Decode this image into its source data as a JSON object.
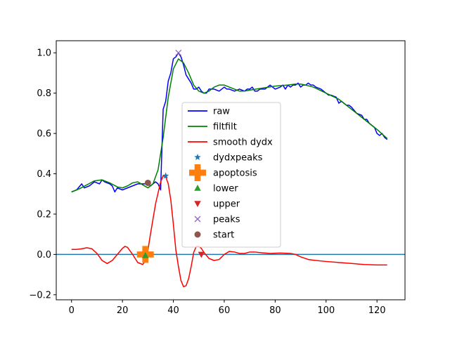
{
  "chart_data": {
    "type": "line",
    "title": "",
    "xlabel": "",
    "ylabel": "",
    "xlim": [
      -6,
      131
    ],
    "ylim": [
      -0.225,
      1.06
    ],
    "x_ticks": [
      0,
      20,
      40,
      60,
      80,
      100,
      120
    ],
    "y_ticks": [
      -0.2,
      0.0,
      0.2,
      0.4,
      0.6,
      0.8,
      1.0
    ],
    "x_tick_labels": [
      "0",
      "20",
      "40",
      "60",
      "80",
      "100",
      "120"
    ],
    "y_tick_labels": [
      "−0.2",
      "0.0",
      "0.2",
      "0.4",
      "0.6",
      "0.8",
      "1.0"
    ],
    "grid": false,
    "legend_position": "center",
    "hline": {
      "y": 0.0,
      "color": "#1f77b4"
    },
    "series": [
      {
        "name": "raw",
        "kind": "line",
        "color": "#0000ff",
        "points": [
          [
            0,
            0.31
          ],
          [
            2,
            0.32
          ],
          [
            4,
            0.35
          ],
          [
            5,
            0.33
          ],
          [
            7,
            0.34
          ],
          [
            9,
            0.36
          ],
          [
            11,
            0.35
          ],
          [
            12,
            0.37
          ],
          [
            13,
            0.36
          ],
          [
            15,
            0.35
          ],
          [
            16,
            0.34
          ],
          [
            17,
            0.31
          ],
          [
            18,
            0.33
          ],
          [
            20,
            0.32
          ],
          [
            22,
            0.33
          ],
          [
            24,
            0.34
          ],
          [
            26,
            0.35
          ],
          [
            28,
            0.35
          ],
          [
            30,
            0.35
          ],
          [
            31,
            0.34
          ],
          [
            32,
            0.35
          ],
          [
            33,
            0.36
          ],
          [
            34,
            0.35
          ],
          [
            35,
            0.32
          ],
          [
            36,
            0.72
          ],
          [
            37,
            0.76
          ],
          [
            38,
            0.86
          ],
          [
            39,
            0.9
          ],
          [
            40,
            0.97
          ],
          [
            41,
            0.98
          ],
          [
            42,
            1.0
          ],
          [
            43,
            0.98
          ],
          [
            44,
            0.94
          ],
          [
            45,
            0.89
          ],
          [
            46,
            0.87
          ],
          [
            47,
            0.85
          ],
          [
            48,
            0.82
          ],
          [
            49,
            0.82
          ],
          [
            50,
            0.83
          ],
          [
            51,
            0.81
          ],
          [
            52,
            0.8
          ],
          [
            53,
            0.8
          ],
          [
            54,
            0.82
          ],
          [
            55,
            0.82
          ],
          [
            56,
            0.82
          ],
          [
            58,
            0.81
          ],
          [
            59,
            0.82
          ],
          [
            60,
            0.83
          ],
          [
            61,
            0.82
          ],
          [
            62,
            0.82
          ],
          [
            64,
            0.81
          ],
          [
            66,
            0.82
          ],
          [
            68,
            0.81
          ],
          [
            69,
            0.82
          ],
          [
            70,
            0.82
          ],
          [
            71,
            0.83
          ],
          [
            72,
            0.81
          ],
          [
            73,
            0.81
          ],
          [
            74,
            0.82
          ],
          [
            76,
            0.82
          ],
          [
            77,
            0.83
          ],
          [
            78,
            0.84
          ],
          [
            79,
            0.83
          ],
          [
            80,
            0.82
          ],
          [
            82,
            0.83
          ],
          [
            83,
            0.84
          ],
          [
            84,
            0.82
          ],
          [
            85,
            0.84
          ],
          [
            86,
            0.83
          ],
          [
            87,
            0.84
          ],
          [
            88,
            0.84
          ],
          [
            89,
            0.85
          ],
          [
            90,
            0.83
          ],
          [
            91,
            0.84
          ],
          [
            92,
            0.84
          ],
          [
            93,
            0.85
          ],
          [
            94,
            0.84
          ],
          [
            95,
            0.84
          ],
          [
            96,
            0.83
          ],
          [
            98,
            0.82
          ],
          [
            99,
            0.81
          ],
          [
            100,
            0.8
          ],
          [
            101,
            0.79
          ],
          [
            102,
            0.79
          ],
          [
            104,
            0.78
          ],
          [
            105,
            0.75
          ],
          [
            106,
            0.76
          ],
          [
            108,
            0.74
          ],
          [
            109,
            0.74
          ],
          [
            110,
            0.73
          ],
          [
            112,
            0.7
          ],
          [
            114,
            0.69
          ],
          [
            115,
            0.67
          ],
          [
            116,
            0.67
          ],
          [
            117,
            0.65
          ],
          [
            118,
            0.64
          ],
          [
            119,
            0.63
          ],
          [
            120,
            0.6
          ],
          [
            121,
            0.59
          ],
          [
            122,
            0.6
          ],
          [
            123,
            0.58
          ],
          [
            124,
            0.57
          ]
        ]
      },
      {
        "name": "filtfilt",
        "kind": "line",
        "color": "#008000",
        "points": [
          [
            0,
            0.31
          ],
          [
            3,
            0.325
          ],
          [
            6,
            0.345
          ],
          [
            9,
            0.365
          ],
          [
            12,
            0.37
          ],
          [
            15,
            0.355
          ],
          [
            18,
            0.335
          ],
          [
            20,
            0.33
          ],
          [
            22,
            0.34
          ],
          [
            24,
            0.355
          ],
          [
            26,
            0.36
          ],
          [
            28,
            0.345
          ],
          [
            30,
            0.33
          ],
          [
            32,
            0.35
          ],
          [
            34,
            0.42
          ],
          [
            36,
            0.58
          ],
          [
            38,
            0.78
          ],
          [
            40,
            0.92
          ],
          [
            42,
            0.97
          ],
          [
            44,
            0.95
          ],
          [
            46,
            0.9
          ],
          [
            48,
            0.84
          ],
          [
            50,
            0.81
          ],
          [
            52,
            0.8
          ],
          [
            54,
            0.81
          ],
          [
            56,
            0.83
          ],
          [
            58,
            0.84
          ],
          [
            60,
            0.84
          ],
          [
            62,
            0.83
          ],
          [
            64,
            0.82
          ],
          [
            66,
            0.81
          ],
          [
            68,
            0.81
          ],
          [
            70,
            0.815
          ],
          [
            75,
            0.825
          ],
          [
            80,
            0.835
          ],
          [
            85,
            0.84
          ],
          [
            88,
            0.845
          ],
          [
            90,
            0.845
          ],
          [
            92,
            0.84
          ],
          [
            95,
            0.83
          ],
          [
            100,
            0.8
          ],
          [
            105,
            0.77
          ],
          [
            110,
            0.72
          ],
          [
            115,
            0.67
          ],
          [
            120,
            0.62
          ],
          [
            124,
            0.575
          ]
        ]
      },
      {
        "name": "smooth dydx",
        "kind": "line",
        "color": "#ff0000",
        "points": [
          [
            0,
            0.025
          ],
          [
            2,
            0.025
          ],
          [
            4,
            0.028
          ],
          [
            6,
            0.033
          ],
          [
            8,
            0.028
          ],
          [
            10,
            0.005
          ],
          [
            12,
            -0.03
          ],
          [
            14,
            -0.045
          ],
          [
            16,
            -0.03
          ],
          [
            18,
            0.0
          ],
          [
            20,
            0.03
          ],
          [
            21,
            0.04
          ],
          [
            22,
            0.035
          ],
          [
            24,
            0.0
          ],
          [
            26,
            -0.04
          ],
          [
            28,
            -0.05
          ],
          [
            29,
            -0.03
          ],
          [
            30,
            0.02
          ],
          [
            31,
            0.1
          ],
          [
            33,
            0.25
          ],
          [
            35,
            0.36
          ],
          [
            36,
            0.39
          ],
          [
            37,
            0.385
          ],
          [
            38,
            0.35
          ],
          [
            39,
            0.27
          ],
          [
            40,
            0.15
          ],
          [
            41,
            0.02
          ],
          [
            42,
            -0.06
          ],
          [
            43,
            -0.13
          ],
          [
            44,
            -0.16
          ],
          [
            45,
            -0.155
          ],
          [
            46,
            -0.12
          ],
          [
            47,
            -0.06
          ],
          [
            48,
            0.01
          ],
          [
            49,
            0.04
          ],
          [
            50,
            0.04
          ],
          [
            51,
            0.03
          ],
          [
            52,
            0.01
          ],
          [
            54,
            -0.02
          ],
          [
            56,
            -0.03
          ],
          [
            58,
            -0.025
          ],
          [
            60,
            0.0
          ],
          [
            62,
            0.015
          ],
          [
            64,
            0.012
          ],
          [
            66,
            0.005
          ],
          [
            68,
            0.005
          ],
          [
            70,
            0.012
          ],
          [
            72,
            0.012
          ],
          [
            75,
            0.008
          ],
          [
            78,
            0.005
          ],
          [
            82,
            0.007
          ],
          [
            86,
            0.005
          ],
          [
            88,
            0.0
          ],
          [
            90,
            -0.012
          ],
          [
            93,
            -0.025
          ],
          [
            96,
            -0.03
          ],
          [
            100,
            -0.035
          ],
          [
            105,
            -0.04
          ],
          [
            110,
            -0.045
          ],
          [
            115,
            -0.05
          ],
          [
            120,
            -0.052
          ],
          [
            124,
            -0.052
          ]
        ]
      },
      {
        "name": "dydxpeaks",
        "kind": "marker",
        "marker": "star",
        "color": "#1f77b4",
        "points": [
          [
            37,
            0.39
          ]
        ]
      },
      {
        "name": "apoptosis",
        "kind": "marker",
        "marker": "plus",
        "color": "#ff7f0e",
        "points": [
          [
            29,
            0.0
          ]
        ]
      },
      {
        "name": "lower",
        "kind": "marker",
        "marker": "triangle-up",
        "color": "#2ca02c",
        "points": [
          [
            29,
            -0.005
          ]
        ]
      },
      {
        "name": "upper",
        "kind": "marker",
        "marker": "triangle-down",
        "color": "#d62728",
        "points": [
          [
            51,
            0.0
          ]
        ]
      },
      {
        "name": "peaks",
        "kind": "marker",
        "marker": "x",
        "color": "#9467bd",
        "points": [
          [
            42,
            1.0
          ]
        ]
      },
      {
        "name": "start",
        "kind": "marker",
        "marker": "circle",
        "color": "#8c564b",
        "points": [
          [
            30,
            0.355
          ]
        ]
      }
    ]
  }
}
